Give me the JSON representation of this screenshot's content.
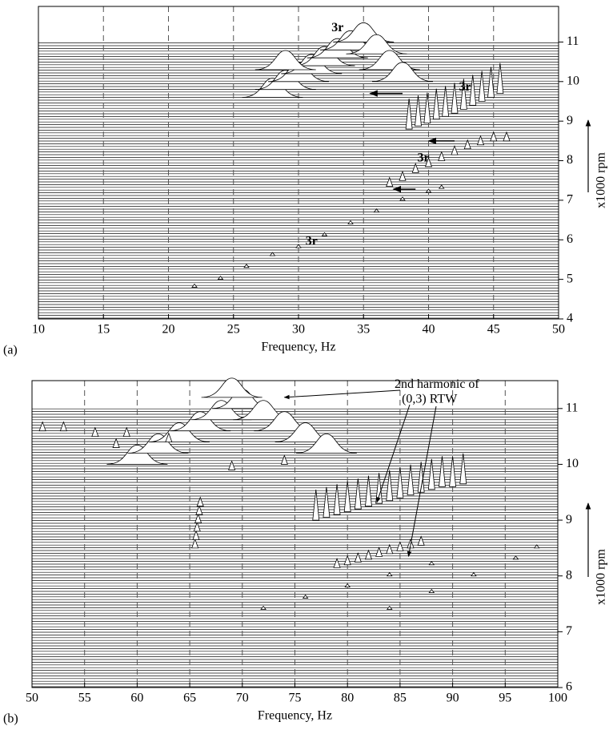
{
  "chart_data": [
    {
      "type": "waterfall",
      "panel_label": "(a)",
      "x_label": "Frequency, Hz",
      "y_label": "x1000 rpm",
      "xlim": [
        10,
        50
      ],
      "xticks": [
        10,
        15,
        20,
        25,
        30,
        35,
        40,
        45,
        50
      ],
      "ylim": [
        4,
        11.9
      ],
      "yticks": [
        4,
        5,
        6,
        7,
        8,
        9,
        10,
        11
      ],
      "grid": true,
      "annotations": [
        "3r",
        "3r",
        "3r",
        "3r"
      ],
      "series": [
        {
          "style": "small",
          "x": [
            22,
            24,
            26,
            28,
            30,
            32,
            34,
            36,
            38,
            40,
            41
          ],
          "values": [
            4.8,
            5.0,
            5.3,
            5.6,
            5.8,
            6.1,
            6.4,
            6.7,
            7.0,
            7.2,
            7.3
          ]
        },
        {
          "style": "medium",
          "x": [
            37,
            38,
            39,
            40,
            41,
            42,
            43,
            44,
            45,
            46
          ],
          "values": [
            7.35,
            7.5,
            7.7,
            7.85,
            8.0,
            8.15,
            8.3,
            8.4,
            8.5,
            8.5
          ]
        },
        {
          "style": "tall",
          "x": [
            38.5,
            39.2,
            39.9,
            40.6,
            41.3,
            42,
            42.7,
            43.4,
            44.1,
            44.8,
            45.5
          ],
          "values": [
            8.8,
            8.88,
            8.95,
            9.05,
            9.12,
            9.2,
            9.3,
            9.4,
            9.5,
            9.6,
            9.7
          ]
        },
        {
          "style": "hump",
          "x": [
            28,
            29,
            30,
            31,
            32,
            33,
            34,
            35,
            36,
            37,
            38,
            29
          ],
          "values": [
            9.6,
            9.8,
            10.0,
            10.2,
            10.4,
            10.6,
            10.8,
            11.0,
            10.7,
            10.3,
            10.0,
            10.3
          ]
        }
      ]
    },
    {
      "type": "waterfall",
      "panel_label": "(b)",
      "x_label": "Frequency, Hz",
      "y_label": "x1000 rpm",
      "xlim": [
        50,
        100
      ],
      "xticks": [
        50,
        55,
        60,
        65,
        70,
        75,
        80,
        85,
        90,
        95,
        100
      ],
      "ylim": [
        6,
        11.5
      ],
      "yticks": [
        6,
        7,
        8,
        9,
        10,
        11
      ],
      "grid": true,
      "annotations": [
        "2nd harmonic of",
        "(0,3) RTW"
      ],
      "series": [
        {
          "style": "hump",
          "x": [
            60,
            62,
            64,
            66,
            68,
            70,
            72,
            74,
            76,
            78,
            69
          ],
          "values": [
            10.0,
            10.2,
            10.4,
            10.6,
            10.8,
            11.0,
            10.8,
            10.6,
            10.4,
            10.2,
            11.2
          ]
        },
        {
          "style": "medium",
          "x": [
            51,
            53,
            56,
            58,
            59,
            63,
            69,
            74
          ],
          "values": [
            10.6,
            10.6,
            10.5,
            10.3,
            10.5,
            10.4,
            9.9,
            10.0
          ]
        },
        {
          "style": "tall",
          "x": [
            77,
            78,
            79,
            80,
            81,
            82,
            83,
            84,
            85,
            86,
            87,
            88,
            89,
            90,
            91
          ],
          "values": [
            9.0,
            9.05,
            9.1,
            9.15,
            9.2,
            9.25,
            9.3,
            9.35,
            9.4,
            9.45,
            9.5,
            9.55,
            9.6,
            9.6,
            9.65
          ]
        },
        {
          "style": "medium",
          "x": [
            65.5,
            65.6,
            65.7,
            65.8,
            65.9,
            66
          ],
          "values": [
            8.5,
            8.65,
            8.8,
            8.95,
            9.1,
            9.25
          ]
        },
        {
          "style": "medium",
          "x": [
            79,
            80,
            81,
            82,
            83,
            84,
            85,
            86,
            87
          ],
          "values": [
            8.15,
            8.2,
            8.25,
            8.3,
            8.35,
            8.4,
            8.45,
            8.5,
            8.55
          ]
        },
        {
          "style": "small",
          "x": [
            72,
            76,
            80,
            84,
            88
          ],
          "values": [
            7.4,
            7.6,
            7.8,
            8.0,
            8.2
          ]
        },
        {
          "style": "small",
          "x": [
            84,
            88,
            92,
            96,
            98
          ],
          "values": [
            7.4,
            7.7,
            8.0,
            8.3,
            8.5
          ]
        }
      ]
    }
  ]
}
